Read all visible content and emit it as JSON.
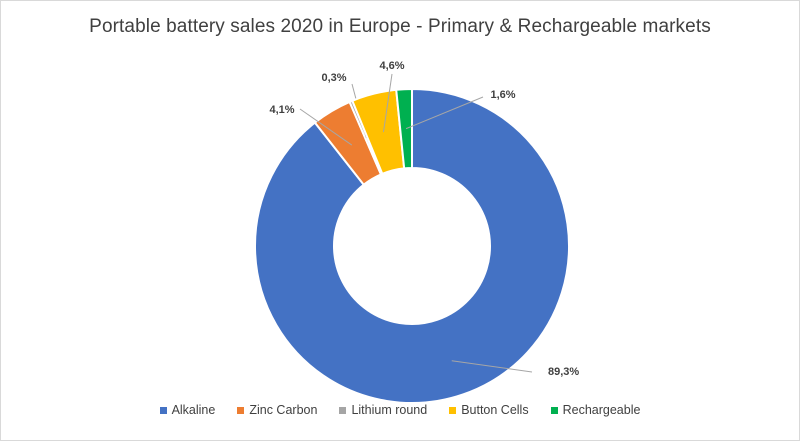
{
  "chart_data": {
    "type": "pie",
    "subtype": "doughnut",
    "title": "Portable battery sales 2020 in Europe - Primary & Rechargeable markets",
    "categories": [
      "Alkaline",
      "Zinc Carbon",
      "Lithium round",
      "Button Cells",
      "Rechargeable"
    ],
    "values": [
      89.3,
      4.1,
      0.3,
      4.6,
      1.6
    ],
    "value_labels": [
      "89,3%",
      "4,1%",
      "0,3%",
      "4,6%",
      "1,6%"
    ],
    "colors": [
      "#4472c4",
      "#ed7d31",
      "#a5a5a5",
      "#ffc000",
      "#00b050"
    ],
    "legend": {
      "position": "bottom"
    }
  }
}
